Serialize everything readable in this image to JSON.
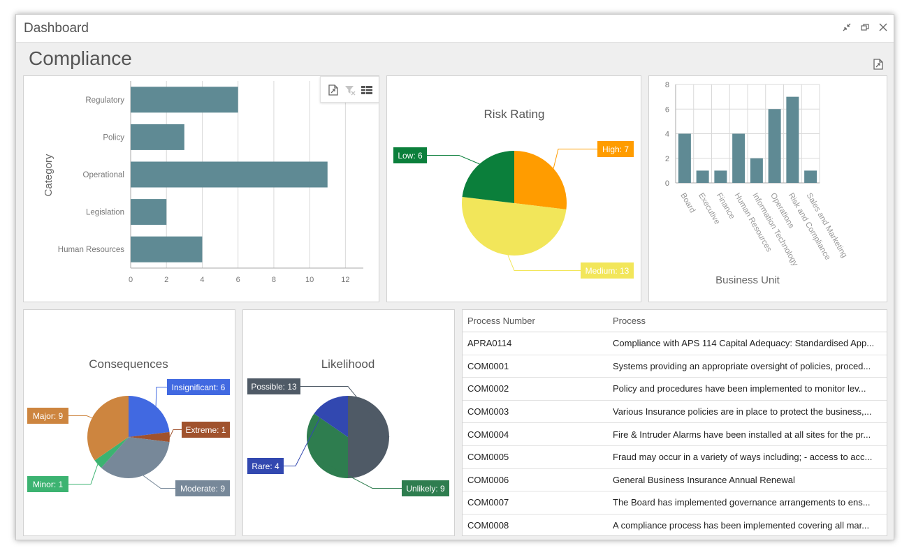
{
  "window": {
    "title": "Dashboard"
  },
  "page": {
    "title": "Compliance"
  },
  "chart_data": [
    {
      "id": "category",
      "type": "bar",
      "orientation": "horizontal",
      "title": "",
      "ylabel": "Category",
      "xlabel": "",
      "categories": [
        "Regulatory",
        "Policy",
        "Operational",
        "Legislation",
        "Human Resources"
      ],
      "values": [
        6,
        3,
        11,
        2,
        4
      ],
      "xlim": [
        0,
        13
      ],
      "ticks": [
        0,
        2,
        4,
        6,
        8,
        10,
        12
      ],
      "color": "#5f8a94",
      "grid": true
    },
    {
      "id": "risk",
      "type": "pie",
      "title": "Risk Rating",
      "slices": [
        {
          "label": "High: 7",
          "value": 7,
          "color": "#ff9c00"
        },
        {
          "label": "Medium: 13",
          "value": 13,
          "color": "#f2e65a"
        },
        {
          "label": "Low: 6",
          "value": 6,
          "color": "#0b7f3b"
        }
      ]
    },
    {
      "id": "business",
      "type": "bar",
      "orientation": "vertical",
      "title": "",
      "xlabel": "Business Unit",
      "ylabel": "",
      "categories": [
        "Board",
        "Executive",
        "Finance",
        "Human Resources",
        "Information Technology",
        "Operations",
        "Risk and Compliance",
        "Sales and Marketing"
      ],
      "values": [
        4,
        1,
        1,
        4,
        2,
        6,
        7,
        1
      ],
      "ylim": [
        0,
        8
      ],
      "ticks": [
        0,
        2,
        4,
        6,
        8
      ],
      "color": "#5f8a94",
      "grid": true
    },
    {
      "id": "consequences",
      "type": "pie",
      "title": "Consequences",
      "slices": [
        {
          "label": "Insignificant: 6",
          "value": 6,
          "color": "#4169e1"
        },
        {
          "label": "Extreme: 1",
          "value": 1,
          "color": "#a0522d"
        },
        {
          "label": "Moderate: 9",
          "value": 9,
          "color": "#778899"
        },
        {
          "label": "Minor: 1",
          "value": 1,
          "color": "#3cb371"
        },
        {
          "label": "Major: 9",
          "value": 9,
          "color": "#cd853f"
        }
      ]
    },
    {
      "id": "likelihood",
      "type": "pie",
      "title": "Likelihood",
      "slices": [
        {
          "label": "Possible: 13",
          "value": 13,
          "color": "#4f5a66"
        },
        {
          "label": "Unlikely: 9",
          "value": 9,
          "color": "#2e7d4f"
        },
        {
          "label": "Rare: 4",
          "value": 4,
          "color": "#3248b0"
        }
      ]
    }
  ],
  "table": {
    "headers": [
      "Process Number",
      "Process"
    ],
    "rows": [
      [
        "APRA0114",
        "Compliance with APS 114 Capital Adequacy: Standardised App..."
      ],
      [
        "COM0001",
        "Systems providing an appropriate oversight of policies, proced..."
      ],
      [
        "COM0002",
        "Policy and procedures have been implemented to monitor lev..."
      ],
      [
        "COM0003",
        "Various Insurance policies are in place to protect the business,..."
      ],
      [
        "COM0004",
        "Fire & Intruder Alarms have been installed at all sites for the pr..."
      ],
      [
        "COM0005",
        "Fraud may occur in a variety of ways including; - access to acc..."
      ],
      [
        "COM0006",
        "General Business Insurance Annual Renewal"
      ],
      [
        "COM0007",
        "The Board has implemented governance arrangements to ens..."
      ],
      [
        "COM0008",
        "A compliance process has been implemented covering all mar..."
      ]
    ]
  }
}
